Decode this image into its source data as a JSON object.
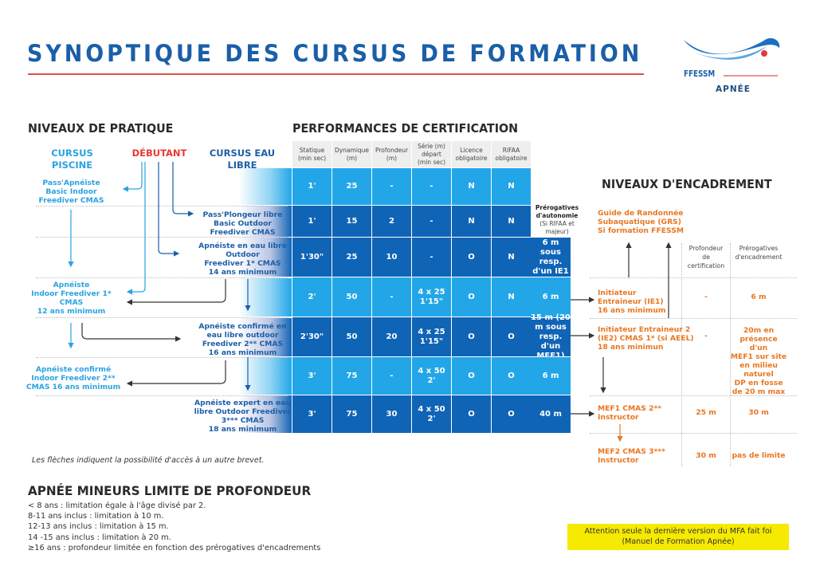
{
  "title": "SYNOPTIQUE DES CURSUS DE FORMATION",
  "logo": {
    "brand": "FFESSM",
    "sub": "APNÉE",
    "colors": {
      "wave": "#1a6fc2",
      "dot": "#e53935"
    }
  },
  "colors": {
    "piscine": "#2aa3e0",
    "eau_libre": "#1c5fa8",
    "debutant": "#e53935",
    "encadrement": "#e87722",
    "row_light": "#22a6e8",
    "row_dark": "#1064b6",
    "warning_bg": "#f5ea00"
  },
  "niveaux": {
    "heading": "NIVEAUX DE PRATIQUE",
    "col_piscine": "CURSUS PISCINE",
    "col_debutant": "DÉBUTANT",
    "col_eau_libre": "CURSUS EAU LIBRE",
    "piscine": [
      [
        "Pass'Apnéiste",
        "Basic Indoor",
        "Freediver CMAS"
      ],
      [
        "Apnéiste",
        "Indoor Freediver 1*",
        "CMAS",
        "12 ans minimum"
      ],
      [
        "Apnéiste confirmé",
        "Indoor Freediver 2**",
        "CMAS 16 ans minimum"
      ]
    ],
    "eau_libre": [
      [
        "Pass'Plongeur libre",
        "Basic Outdoor",
        "Freediver CMAS"
      ],
      [
        "Apnéiste en eau libre",
        "Outdoor",
        "Freediver 1* CMAS",
        "14 ans minimum"
      ],
      [
        "Apnéiste confirmé en",
        "eau libre outdoor",
        "Freediver 2** CMAS",
        "16 ans minimum"
      ],
      [
        "Apnéiste expert en eau",
        "libre Outdoor Freediver",
        "3*** CMAS",
        "18 ans minimum"
      ]
    ],
    "note": "Les flèches indiquent la possibilité d'accès à un autre brevet."
  },
  "performances": {
    "heading": "PERFORMANCES DE CERTIFICATION",
    "columns": [
      [
        "Statique",
        "(min sec)"
      ],
      [
        "Dynamique",
        "(m)"
      ],
      [
        "Profondeur",
        "(m)"
      ],
      [
        "Série (m)",
        "départ",
        "(min sec)"
      ],
      [
        "Licence",
        "obligatoire"
      ],
      [
        "RIFAA",
        "obligatoire"
      ]
    ],
    "rows": [
      {
        "tone": "light",
        "cells": [
          "1'",
          "25",
          "-",
          "-",
          "N",
          "N"
        ]
      },
      {
        "tone": "dark",
        "cells": [
          "1'",
          "15",
          "2",
          "-",
          "N",
          "N"
        ]
      },
      {
        "tone": "dark",
        "cells": [
          "1'30\"",
          "25",
          "10",
          "-",
          "O",
          "N"
        ]
      },
      {
        "tone": "light",
        "cells": [
          "2'",
          "50",
          "-",
          "4 x 25\n1'15\"",
          "O",
          "N"
        ]
      },
      {
        "tone": "dark",
        "cells": [
          "2'30\"",
          "50",
          "20",
          "4 x 25\n1'15\"",
          "O",
          "O"
        ]
      },
      {
        "tone": "light",
        "cells": [
          "3'",
          "75",
          "-",
          "4 x 50\n2'",
          "O",
          "O"
        ]
      },
      {
        "tone": "dark",
        "cells": [
          "3'",
          "75",
          "30",
          "4 x 50\n2'",
          "O",
          "O"
        ]
      }
    ],
    "autonomie_header": {
      "title": "Prérogatives d'autonomie",
      "sub": "(Si RIFAA et majeur)"
    },
    "autonomie": [
      "6 m sous resp. d'un IE1",
      "6 m",
      "15 m (20 m sous resp. d'un MEF1)",
      "6 m",
      "40 m"
    ]
  },
  "encadrement": {
    "heading": "NIVEAUX D'ENCADREMENT",
    "grs": [
      "Guide de Randonnée",
      "Subaquatique (GRS)",
      "Si formation FFESSM"
    ],
    "col_profondeur": [
      "Profondeur",
      "de",
      "certification"
    ],
    "col_prerogatives": [
      "Prérogatives",
      "d'encadrement"
    ],
    "levels": [
      {
        "name": [
          "Initiateur",
          "Entraineur (IE1)",
          "16 ans minimum"
        ],
        "profondeur": "-",
        "prerogatives": [
          "6 m"
        ]
      },
      {
        "name": [
          "Initiateur Entraineur 2",
          "(IE2) CMAS 1* (si AEEL)",
          "18 ans minimun"
        ],
        "profondeur": "-",
        "prerogatives": [
          "20m en",
          "présence d'un",
          "MEF1 sur site",
          "en milieu",
          "naturel",
          "DP en fosse",
          "de 20 m max"
        ]
      },
      {
        "name": [
          "MEF1 CMAS 2**",
          "Instructor"
        ],
        "profondeur": "25 m",
        "prerogatives": [
          "30 m"
        ]
      },
      {
        "name": [
          "MEF2 CMAS 3***",
          "Instructor"
        ],
        "profondeur": "30 m",
        "prerogatives": [
          "pas de limite"
        ]
      }
    ]
  },
  "mineurs": {
    "heading": "APNÉE MINEURS LIMITE DE PROFONDEUR",
    "lines": [
      "< 8 ans : limitation égale à l'âge divisé par 2.",
      "8-11 ans inclus : limitation à 10 m.",
      "12-13 ans inclus : limitation à 15 m.",
      "14 -15 ans inclus : limitation à 20 m.",
      "≥16 ans : profondeur limitée en fonction des prérogatives d'encadrements"
    ]
  },
  "warning": [
    "Attention seule la dernière version du MFA fait foi",
    "(Manuel de Formation Apnée)"
  ]
}
